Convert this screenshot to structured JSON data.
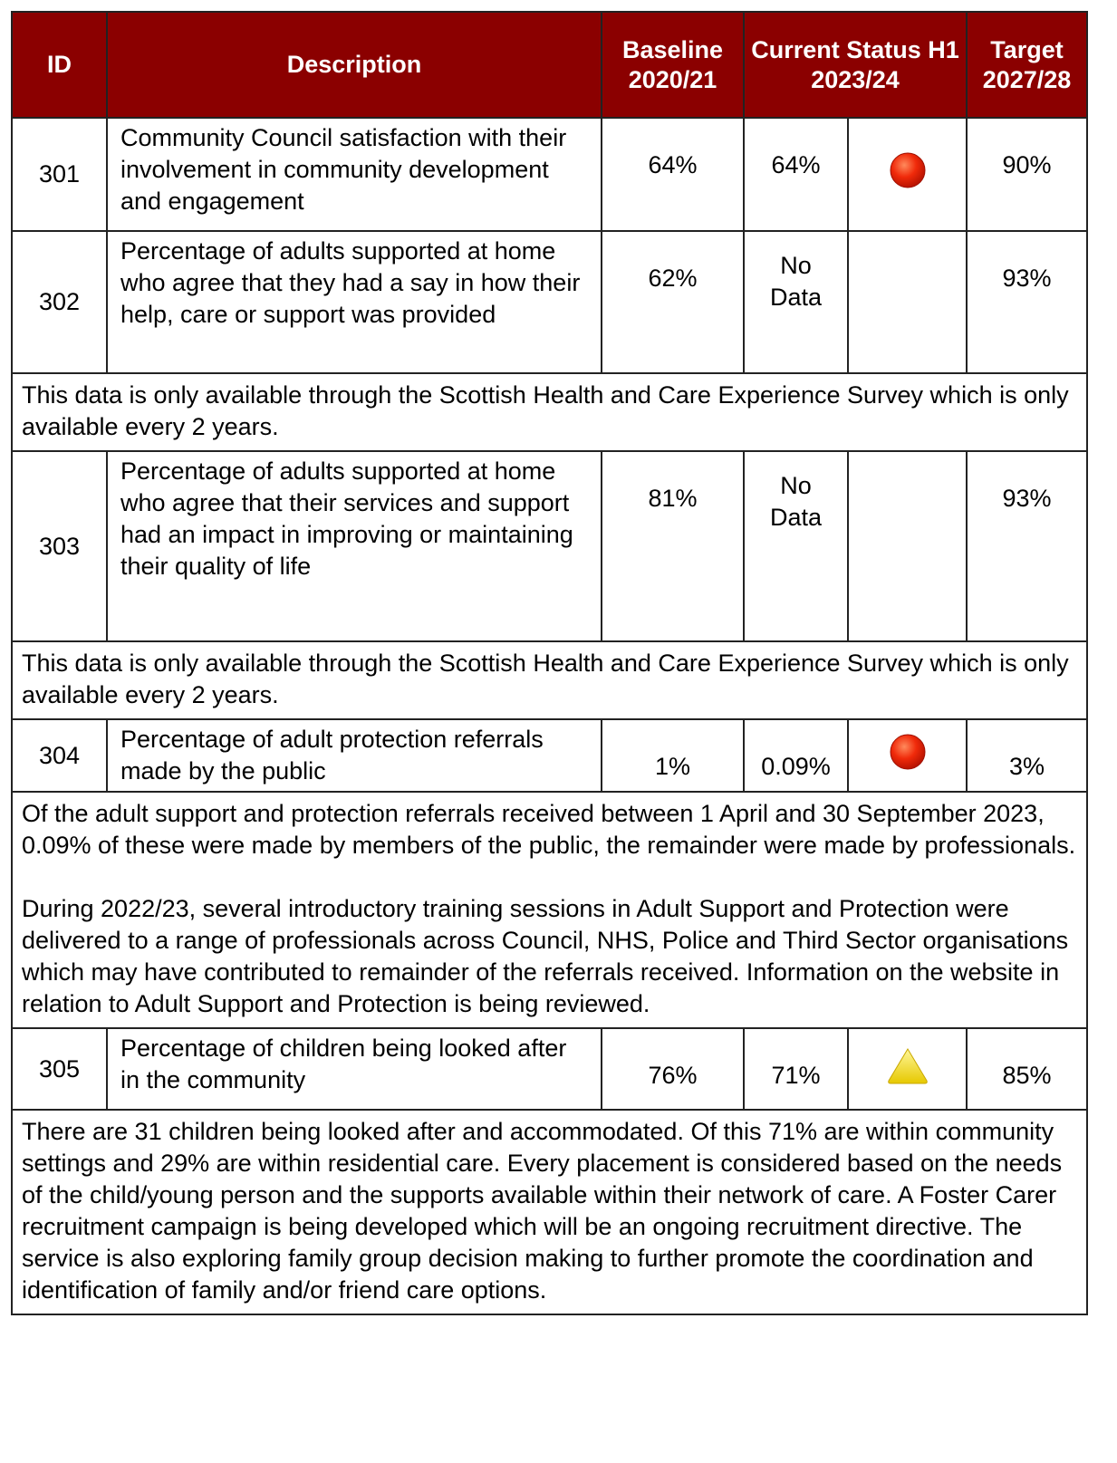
{
  "table": {
    "header": [
      "ID",
      "Description",
      "Baseline 2020/21",
      "Current Status H1 2023/24",
      "Target 2027/28"
    ],
    "rows": [
      {
        "id": "301",
        "description": "Community Council satisfaction with their involvement in community development and engagement",
        "baseline": "64%",
        "current": "64%",
        "status": "red",
        "target": "90%"
      },
      {
        "id": "302",
        "description": "Percentage of adults supported at home who agree that they had a say in how their help, care or support was provided",
        "baseline": "62%",
        "current": "No Data",
        "status": null,
        "target": "93%",
        "note": [
          "This data is only available through the Scottish Health and Care Experience Survey which is only available every 2 years."
        ]
      },
      {
        "id": "303",
        "description": "Percentage of adults supported at home who agree that their services and support had an impact in improving or maintaining their quality of life",
        "baseline": "81%",
        "current": "No Data",
        "status": null,
        "target": "93%",
        "note": [
          "This data is only available through the Scottish Health and Care Experience Survey which is only available every 2 years."
        ]
      },
      {
        "id": "304",
        "description": "Percentage of adult protection referrals made by the public",
        "baseline": "1%",
        "current": "0.09%",
        "status": "red",
        "target": "3%",
        "note": [
          "Of the adult support and protection referrals received between 1 April and 30 September 2023, 0.09% of these were made by members of the public, the remainder were made by professionals.",
          "During 2022/23, several introductory training sessions in Adult Support and Protection were delivered to a range of professionals across Council, NHS, Police and Third Sector organisations which may have contributed to remainder of the referrals received. Information on the website in relation to Adult Support and Protection is being reviewed."
        ]
      },
      {
        "id": "305",
        "description": "Percentage of children being looked after in the community",
        "baseline": "76%",
        "current": "71%",
        "status": "amber",
        "target": "85%",
        "note": [
          "There are 31 children being looked after and accommodated. Of this 71% are within community settings and 29% are within residential care. Every placement is considered based on the needs of the child/young person and the supports available within their network of care. A Foster Carer recruitment campaign is being developed which will be an ongoing recruitment directive. The service is also exploring family group decision making to further promote the coordination and identification of family and/or friend care options."
        ]
      }
    ]
  }
}
